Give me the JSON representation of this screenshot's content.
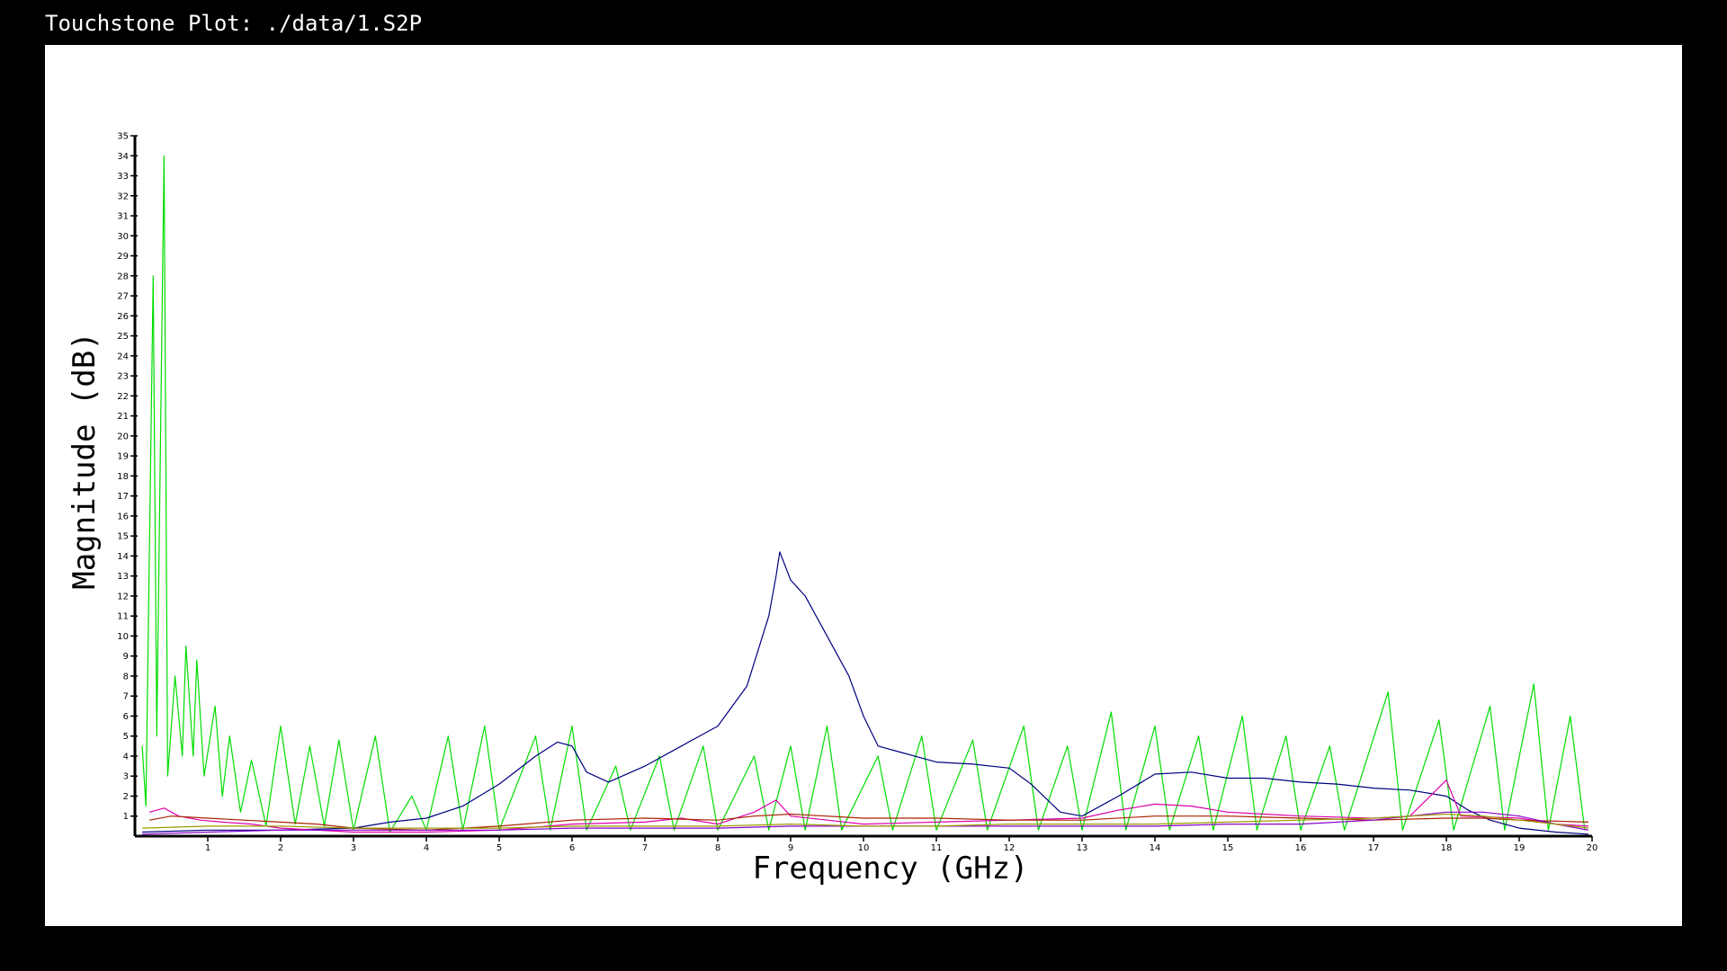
{
  "window": {
    "title": "Touchstone Plot: ./data/1.S2P"
  },
  "chart_data": {
    "type": "line",
    "xlabel": "Frequency (GHz)",
    "ylabel": "Magnitude (dB)",
    "xlim": [
      0,
      20
    ],
    "ylim": [
      0,
      35
    ],
    "x_ticks": [
      1,
      2,
      3,
      4,
      5,
      6,
      7,
      8,
      9,
      10,
      11,
      12,
      13,
      14,
      15,
      16,
      17,
      18,
      19,
      20
    ],
    "y_ticks": [
      1,
      2,
      3,
      4,
      5,
      6,
      7,
      8,
      9,
      10,
      11,
      12,
      13,
      14,
      15,
      16,
      17,
      18,
      19,
      20,
      21,
      22,
      23,
      24,
      25,
      26,
      27,
      28,
      29,
      30,
      31,
      32,
      33,
      34,
      35
    ],
    "grid": false,
    "series": [
      {
        "color": "#00dd00",
        "description": "noisy spiky trace",
        "points": [
          [
            0.1,
            4.5
          ],
          [
            0.15,
            1.5
          ],
          [
            0.25,
            28
          ],
          [
            0.3,
            5
          ],
          [
            0.4,
            34
          ],
          [
            0.45,
            3
          ],
          [
            0.55,
            8
          ],
          [
            0.65,
            4
          ],
          [
            0.7,
            9.5
          ],
          [
            0.8,
            4
          ],
          [
            0.85,
            8.8
          ],
          [
            0.95,
            3
          ],
          [
            1.1,
            6.5
          ],
          [
            1.2,
            2
          ],
          [
            1.3,
            5
          ],
          [
            1.45,
            1.2
          ],
          [
            1.6,
            3.8
          ],
          [
            1.8,
            0.5
          ],
          [
            2.0,
            5.5
          ],
          [
            2.2,
            0.6
          ],
          [
            2.4,
            4.5
          ],
          [
            2.6,
            0.5
          ],
          [
            2.8,
            4.8
          ],
          [
            3.0,
            0.3
          ],
          [
            3.3,
            5
          ],
          [
            3.5,
            0.2
          ],
          [
            3.8,
            2
          ],
          [
            4.0,
            0.3
          ],
          [
            4.3,
            5
          ],
          [
            4.5,
            0.3
          ],
          [
            4.8,
            5.5
          ],
          [
            5.0,
            0.3
          ],
          [
            5.5,
            5
          ],
          [
            5.7,
            0.3
          ],
          [
            6.0,
            5.5
          ],
          [
            6.2,
            0.3
          ],
          [
            6.6,
            3.5
          ],
          [
            6.8,
            0.3
          ],
          [
            7.2,
            4
          ],
          [
            7.4,
            0.3
          ],
          [
            7.8,
            4.5
          ],
          [
            8.0,
            0.3
          ],
          [
            8.5,
            4
          ],
          [
            8.7,
            0.3
          ],
          [
            9.0,
            4.5
          ],
          [
            9.2,
            0.3
          ],
          [
            9.5,
            5.5
          ],
          [
            9.7,
            0.3
          ],
          [
            10.2,
            4
          ],
          [
            10.4,
            0.3
          ],
          [
            10.8,
            5
          ],
          [
            11.0,
            0.3
          ],
          [
            11.5,
            4.8
          ],
          [
            11.7,
            0.3
          ],
          [
            12.2,
            5.5
          ],
          [
            12.4,
            0.3
          ],
          [
            12.8,
            4.5
          ],
          [
            13.0,
            0.3
          ],
          [
            13.4,
            6.2
          ],
          [
            13.6,
            0.3
          ],
          [
            14.0,
            5.5
          ],
          [
            14.2,
            0.3
          ],
          [
            14.6,
            5
          ],
          [
            14.8,
            0.3
          ],
          [
            15.2,
            6
          ],
          [
            15.4,
            0.3
          ],
          [
            15.8,
            5
          ],
          [
            16.0,
            0.3
          ],
          [
            16.4,
            4.5
          ],
          [
            16.6,
            0.3
          ],
          [
            17.2,
            7.2
          ],
          [
            17.4,
            0.3
          ],
          [
            17.9,
            5.8
          ],
          [
            18.1,
            0.3
          ],
          [
            18.6,
            6.5
          ],
          [
            18.8,
            0.3
          ],
          [
            19.2,
            7.6
          ],
          [
            19.4,
            0.3
          ],
          [
            19.7,
            6
          ],
          [
            19.9,
            0.3
          ]
        ]
      },
      {
        "color": "#000080",
        "description": "smooth blue trace",
        "points": [
          [
            0.1,
            0.2
          ],
          [
            1,
            0.3
          ],
          [
            2,
            0.3
          ],
          [
            3,
            0.4
          ],
          [
            3.5,
            0.7
          ],
          [
            4,
            0.9
          ],
          [
            4.5,
            1.5
          ],
          [
            5,
            2.6
          ],
          [
            5.5,
            4
          ],
          [
            5.8,
            4.7
          ],
          [
            6.0,
            4.5
          ],
          [
            6.2,
            3.2
          ],
          [
            6.5,
            2.7
          ],
          [
            7,
            3.5
          ],
          [
            7.5,
            4.5
          ],
          [
            8,
            5.5
          ],
          [
            8.4,
            7.5
          ],
          [
            8.7,
            11
          ],
          [
            8.8,
            13
          ],
          [
            8.85,
            14.2
          ],
          [
            9.0,
            12.8
          ],
          [
            9.2,
            12
          ],
          [
            9.5,
            10
          ],
          [
            9.8,
            8
          ],
          [
            10,
            6
          ],
          [
            10.2,
            4.5
          ],
          [
            10.5,
            4.2
          ],
          [
            11,
            3.7
          ],
          [
            11.5,
            3.6
          ],
          [
            12,
            3.4
          ],
          [
            12.3,
            2.6
          ],
          [
            12.7,
            1.2
          ],
          [
            13,
            1
          ],
          [
            13.5,
            2
          ],
          [
            14,
            3.1
          ],
          [
            14.5,
            3.2
          ],
          [
            15,
            2.9
          ],
          [
            15.5,
            2.9
          ],
          [
            16,
            2.7
          ],
          [
            16.5,
            2.6
          ],
          [
            17,
            2.4
          ],
          [
            17.5,
            2.3
          ],
          [
            18,
            2
          ],
          [
            18.3,
            1.3
          ],
          [
            18.6,
            0.8
          ],
          [
            19,
            0.4
          ],
          [
            19.5,
            0.2
          ],
          [
            19.95,
            0.1
          ]
        ]
      },
      {
        "color": "#dd00aa",
        "description": "magenta trace",
        "points": [
          [
            0.2,
            1.2
          ],
          [
            0.4,
            1.4
          ],
          [
            0.6,
            1
          ],
          [
            0.9,
            0.8
          ],
          [
            1.2,
            0.7
          ],
          [
            1.6,
            0.6
          ],
          [
            2,
            0.4
          ],
          [
            3,
            0.2
          ],
          [
            4,
            0.2
          ],
          [
            5,
            0.3
          ],
          [
            6,
            0.6
          ],
          [
            7,
            0.7
          ],
          [
            7.5,
            0.9
          ],
          [
            8,
            0.6
          ],
          [
            8.5,
            1.2
          ],
          [
            8.8,
            1.8
          ],
          [
            9,
            1
          ],
          [
            9.5,
            0.8
          ],
          [
            10,
            0.6
          ],
          [
            11,
            0.7
          ],
          [
            12,
            0.8
          ],
          [
            13,
            0.9
          ],
          [
            13.5,
            1.3
          ],
          [
            14,
            1.6
          ],
          [
            14.5,
            1.5
          ],
          [
            15,
            1.2
          ],
          [
            16,
            1
          ],
          [
            17,
            0.9
          ],
          [
            17.5,
            1
          ],
          [
            18,
            2.8
          ],
          [
            18.2,
            1
          ],
          [
            19,
            0.9
          ],
          [
            19.5,
            0.6
          ],
          [
            19.95,
            0.5
          ]
        ]
      },
      {
        "color": "#aa2200",
        "description": "dark red trace",
        "points": [
          [
            0.2,
            0.8
          ],
          [
            0.5,
            1
          ],
          [
            1,
            0.9
          ],
          [
            1.5,
            0.8
          ],
          [
            2,
            0.7
          ],
          [
            2.5,
            0.6
          ],
          [
            3,
            0.4
          ],
          [
            4,
            0.3
          ],
          [
            5,
            0.5
          ],
          [
            6,
            0.8
          ],
          [
            7,
            0.9
          ],
          [
            8,
            0.8
          ],
          [
            8.5,
            1
          ],
          [
            9,
            1.1
          ],
          [
            10,
            0.9
          ],
          [
            11,
            0.9
          ],
          [
            12,
            0.8
          ],
          [
            13,
            0.8
          ],
          [
            14,
            1
          ],
          [
            15,
            1
          ],
          [
            16,
            0.9
          ],
          [
            17,
            0.8
          ],
          [
            18,
            0.9
          ],
          [
            18.5,
            0.9
          ],
          [
            19,
            0.8
          ],
          [
            19.95,
            0.7
          ]
        ]
      },
      {
        "color": "#8800cc",
        "description": "purple trace",
        "points": [
          [
            0.1,
            0.1
          ],
          [
            1,
            0.2
          ],
          [
            2,
            0.3
          ],
          [
            3,
            0.3
          ],
          [
            4,
            0.3
          ],
          [
            5,
            0.3
          ],
          [
            6,
            0.4
          ],
          [
            7,
            0.4
          ],
          [
            8,
            0.4
          ],
          [
            9,
            0.5
          ],
          [
            10,
            0.5
          ],
          [
            11,
            0.5
          ],
          [
            12,
            0.5
          ],
          [
            13,
            0.5
          ],
          [
            14,
            0.5
          ],
          [
            15,
            0.6
          ],
          [
            16,
            0.6
          ],
          [
            17,
            0.8
          ],
          [
            17.5,
            1
          ],
          [
            18,
            1.2
          ],
          [
            18.5,
            1.2
          ],
          [
            19,
            1
          ],
          [
            19.5,
            0.6
          ],
          [
            19.95,
            0.3
          ]
        ]
      },
      {
        "color": "#9a9a00",
        "description": "olive trace",
        "points": [
          [
            0.1,
            0.4
          ],
          [
            1,
            0.5
          ],
          [
            2,
            0.5
          ],
          [
            3,
            0.4
          ],
          [
            4,
            0.4
          ],
          [
            5,
            0.4
          ],
          [
            6,
            0.5
          ],
          [
            7,
            0.5
          ],
          [
            8,
            0.5
          ],
          [
            9,
            0.6
          ],
          [
            10,
            0.5
          ],
          [
            11,
            0.5
          ],
          [
            12,
            0.6
          ],
          [
            13,
            0.6
          ],
          [
            14,
            0.6
          ],
          [
            15,
            0.7
          ],
          [
            16,
            0.8
          ],
          [
            17,
            0.9
          ],
          [
            18,
            1.1
          ],
          [
            18.5,
            1
          ],
          [
            19,
            0.8
          ],
          [
            19.5,
            0.6
          ],
          [
            19.95,
            0.4
          ]
        ]
      }
    ]
  }
}
